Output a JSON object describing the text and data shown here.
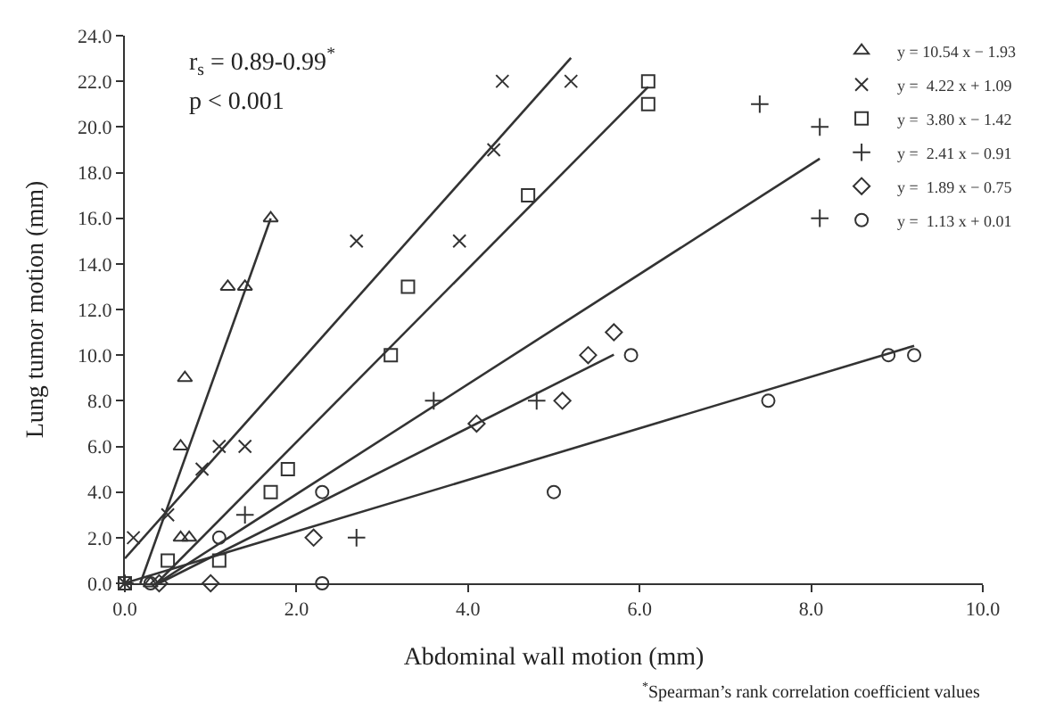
{
  "chart_data": {
    "type": "scatter",
    "xlabel": "Abdominal wall motion (mm)",
    "ylabel": "Lung tumor motion (mm)",
    "annotations": [
      "r$_{s}$ = 0.89-0.99$^{*}$",
      "p < 0.001",
      "$^{*}$Spearman’s rank correlation coefficient values"
    ],
    "xlim": [
      0,
      10
    ],
    "xticks": [
      {
        "value": 0,
        "label": "0.0"
      },
      {
        "value": 2,
        "label": "2.0"
      },
      {
        "value": 4,
        "label": "4.0"
      },
      {
        "value": 6,
        "label": "6.0"
      },
      {
        "value": 8,
        "label": "8.0"
      },
      {
        "value": 10,
        "label": "10.0"
      }
    ],
    "ylim": [
      0,
      24
    ],
    "yticks": [
      {
        "value": 0,
        "label": "0.0"
      },
      {
        "value": 2,
        "label": "2.0"
      },
      {
        "value": 4,
        "label": "4.0"
      },
      {
        "value": 6,
        "label": "6.0"
      },
      {
        "value": 8,
        "label": "8.0"
      },
      {
        "value": 10,
        "label": "10.0"
      },
      {
        "value": 12,
        "label": "12.0"
      },
      {
        "value": 14,
        "label": "14.0"
      },
      {
        "value": 16,
        "label": "16.0"
      },
      {
        "value": 18,
        "label": "18.0"
      },
      {
        "value": 20,
        "label": "20.0"
      },
      {
        "value": 22,
        "label": "22.0"
      },
      {
        "value": 24,
        "label": "24.0"
      }
    ],
    "legend": "top right",
    "series": [
      {
        "name": "y = 10.54 x − 1.93",
        "color": "#333333",
        "marker": "triangle",
        "x": [
          0.3,
          0.65,
          0.75,
          0.65,
          0.7,
          1.2,
          1.4,
          1.7
        ],
        "values": [
          0,
          2,
          2,
          6,
          9,
          13,
          13,
          16
        ]
      },
      {
        "name": "y =  4.22 x + 1.09",
        "color": "#333333",
        "marker": "x",
        "x": [
          0,
          0.1,
          0.5,
          0.9,
          1.1,
          1.4,
          2.7,
          3.9,
          4.3,
          4.4,
          5.2
        ],
        "values": [
          0,
          2,
          3,
          5,
          6,
          6,
          15,
          15,
          19,
          22,
          22
        ]
      },
      {
        "name": "y =  3.80 x − 1.42",
        "color": "#333333",
        "marker": "square",
        "x": [
          0,
          0.5,
          1.1,
          1.7,
          1.9,
          3.1,
          3.3,
          4.7,
          6.1,
          6.1
        ],
        "values": [
          0,
          1,
          1,
          4,
          5,
          10,
          13,
          17,
          22,
          21
        ]
      },
      {
        "name": "y =  2.41 x − 0.91",
        "color": "#333333",
        "marker": "cross",
        "x": [
          0,
          1.4,
          2.7,
          3.6,
          4.8,
          7.4,
          8.1,
          8.1
        ],
        "values": [
          0,
          3,
          2,
          8,
          8,
          21,
          20,
          16
        ]
      },
      {
        "name": "y =  1.89 x − 0.75",
        "color": "#333333",
        "marker": "diamond",
        "x": [
          0.4,
          1.0,
          2.2,
          4.1,
          5.1,
          5.4,
          5.7
        ],
        "values": [
          0,
          0,
          2,
          7,
          8,
          10,
          11
        ]
      },
      {
        "name": "y =  1.13 x + 0.01",
        "color": "#333333",
        "marker": "circle",
        "x": [
          0.3,
          1.1,
          2.3,
          2.3,
          5.0,
          5.9,
          7.5,
          8.9,
          9.2
        ],
        "values": [
          0,
          2,
          4,
          0,
          4,
          10,
          8,
          10,
          10
        ]
      },
      {
        "type": "line",
        "color": "#333333",
        "x": [
          0.18,
          1.7
        ],
        "values": [
          0,
          15.99
        ]
      },
      {
        "type": "line",
        "color": "#333333",
        "x": [
          0,
          5.2
        ],
        "values": [
          1.09,
          23.03
        ]
      },
      {
        "type": "line",
        "color": "#333333",
        "x": [
          0.37,
          6.1
        ],
        "values": [
          0,
          21.76
        ]
      },
      {
        "type": "line",
        "color": "#333333",
        "x": [
          0.38,
          8.1
        ],
        "values": [
          0,
          18.61
        ]
      },
      {
        "type": "line",
        "color": "#333333",
        "x": [
          0.4,
          5.7
        ],
        "values": [
          0,
          10.02
        ]
      },
      {
        "type": "line",
        "color": "#333333",
        "x": [
          0,
          9.2
        ],
        "values": [
          0.01,
          10.41
        ]
      }
    ]
  }
}
